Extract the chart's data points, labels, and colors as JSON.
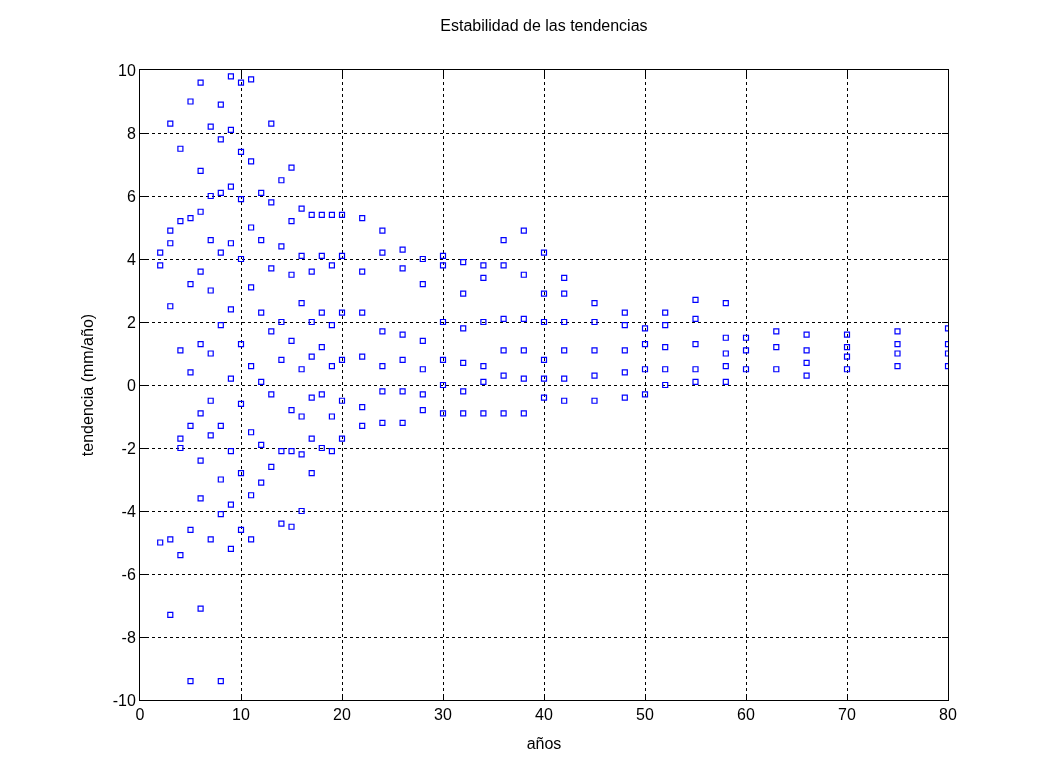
{
  "chart_data": {
    "type": "scatter",
    "title": "Estabilidad de las tendencias",
    "xlabel": "años",
    "ylabel": "tendencia (mm/año)",
    "xlim": [
      0,
      80
    ],
    "xticks": [
      0,
      10,
      20,
      30,
      40,
      50,
      60,
      70,
      80
    ],
    "ylim": [
      -10,
      10
    ],
    "yticks": [
      -10,
      -8,
      -6,
      -4,
      -2,
      0,
      2,
      4,
      6,
      8,
      10
    ],
    "grid": true,
    "marker": "square",
    "series": [
      {
        "color": "#0000ff",
        "x": [
          2,
          2,
          2,
          3,
          3,
          3,
          3,
          3,
          3,
          4,
          4,
          4,
          4,
          4,
          4,
          5,
          5,
          5,
          5,
          5,
          5,
          5,
          6,
          6,
          6,
          6,
          6,
          6,
          6,
          6,
          6,
          7,
          7,
          7,
          7,
          7,
          7,
          7,
          7,
          8,
          8,
          8,
          8,
          8,
          8,
          8,
          8,
          8,
          9,
          9,
          9,
          9,
          9,
          9,
          9,
          9,
          9,
          10,
          10,
          10,
          10,
          10,
          10,
          10,
          10,
          11,
          11,
          11,
          11,
          11,
          11,
          11,
          11,
          12,
          12,
          12,
          12,
          12,
          12,
          13,
          13,
          13,
          13,
          13,
          13,
          14,
          14,
          14,
          14,
          14,
          14,
          15,
          15,
          15,
          15,
          15,
          15,
          15,
          16,
          16,
          16,
          16,
          16,
          16,
          16,
          17,
          17,
          17,
          17,
          17,
          17,
          17,
          18,
          18,
          18,
          18,
          18,
          18,
          19,
          19,
          19,
          19,
          19,
          19,
          20,
          20,
          20,
          20,
          20,
          20,
          22,
          22,
          22,
          22,
          22,
          22,
          24,
          24,
          24,
          24,
          24,
          24,
          26,
          26,
          26,
          26,
          26,
          26,
          28,
          28,
          28,
          28,
          28,
          28,
          30,
          30,
          30,
          30,
          30,
          30,
          32,
          32,
          32,
          32,
          32,
          32,
          34,
          34,
          34,
          34,
          34,
          34,
          36,
          36,
          36,
          36,
          36,
          36,
          38,
          38,
          38,
          38,
          38,
          38,
          40,
          40,
          40,
          40,
          40,
          40,
          42,
          42,
          42,
          42,
          42,
          42,
          45,
          45,
          45,
          45,
          45,
          48,
          48,
          48,
          48,
          48,
          50,
          50,
          50,
          50,
          52,
          52,
          52,
          52,
          52,
          55,
          55,
          55,
          55,
          55,
          58,
          58,
          58,
          58,
          58,
          60,
          60,
          60,
          63,
          63,
          63,
          66,
          66,
          66,
          66,
          70,
          70,
          70,
          70,
          75,
          75,
          75,
          75,
          80,
          80,
          80,
          80
        ],
        "values": [
          4.2,
          3.8,
          -5.0,
          8.3,
          4.9,
          4.5,
          2.5,
          -4.9,
          -7.3,
          7.5,
          5.2,
          1.1,
          -1.7,
          -2.0,
          -5.4,
          9.0,
          5.3,
          3.2,
          0.4,
          -1.3,
          -4.6,
          -9.4,
          9.6,
          6.8,
          5.5,
          3.6,
          1.3,
          -0.9,
          -2.4,
          -3.6,
          -7.1,
          8.2,
          6.0,
          4.6,
          3.0,
          1.0,
          -0.5,
          -1.6,
          -4.9,
          8.9,
          7.8,
          6.1,
          4.2,
          1.9,
          -1.3,
          -3.0,
          -4.1,
          -9.4,
          9.8,
          8.1,
          6.3,
          4.5,
          2.4,
          0.2,
          -2.1,
          -3.8,
          -5.2,
          9.6,
          7.4,
          5.9,
          4.0,
          1.3,
          -0.6,
          -2.8,
          -4.6,
          9.7,
          7.1,
          5.0,
          3.1,
          0.6,
          -1.5,
          -3.5,
          -4.9,
          6.1,
          4.6,
          2.3,
          0.1,
          -1.9,
          -3.1,
          8.3,
          5.8,
          3.7,
          1.7,
          -0.3,
          -2.6,
          6.5,
          4.4,
          2.0,
          0.8,
          -2.1,
          -4.4,
          6.9,
          5.2,
          3.5,
          1.4,
          -0.8,
          -2.1,
          -4.5,
          5.6,
          4.1,
          2.6,
          0.5,
          -1.0,
          -2.2,
          -4.0,
          5.4,
          3.6,
          2.0,
          0.9,
          -0.4,
          -1.7,
          -2.8,
          5.4,
          4.1,
          2.3,
          1.2,
          -0.3,
          -2.0,
          5.4,
          3.8,
          1.9,
          0.6,
          -1.0,
          -2.1,
          5.4,
          4.1,
          2.3,
          0.8,
          -0.5,
          -1.7,
          5.3,
          3.6,
          2.3,
          0.9,
          -0.7,
          -1.3,
          4.9,
          4.2,
          1.7,
          0.6,
          -0.2,
          -1.2,
          4.3,
          3.7,
          1.6,
          0.8,
          -0.2,
          -1.2,
          4.0,
          3.2,
          1.4,
          0.5,
          -0.3,
          -0.8,
          4.1,
          3.8,
          2.0,
          0.8,
          0.0,
          -0.9,
          3.9,
          2.9,
          1.8,
          0.7,
          -0.2,
          -0.9,
          3.8,
          3.4,
          2.0,
          0.6,
          0.1,
          -0.9,
          4.6,
          3.8,
          2.1,
          1.1,
          0.3,
          -0.9,
          4.9,
          3.5,
          2.1,
          1.1,
          0.2,
          -0.9,
          4.2,
          2.9,
          2.0,
          0.8,
          0.2,
          -0.4,
          3.4,
          2.9,
          2.0,
          1.1,
          0.2,
          -0.5,
          2.6,
          2.0,
          1.1,
          0.3,
          -0.5,
          2.3,
          1.9,
          1.1,
          0.4,
          -0.4,
          1.8,
          1.3,
          0.5,
          -0.3,
          2.3,
          1.9,
          1.2,
          0.5,
          0.0,
          2.7,
          2.1,
          1.3,
          0.5,
          0.1,
          2.6,
          1.5,
          1.0,
          0.6,
          0.1,
          1.5,
          1.1,
          0.5,
          1.7,
          1.2,
          0.5,
          1.6,
          1.1,
          0.7,
          0.3,
          1.6,
          1.2,
          0.9,
          0.5,
          1.7,
          1.3,
          1.0,
          0.6,
          1.8,
          1.3,
          1.0,
          0.6
        ]
      }
    ]
  }
}
